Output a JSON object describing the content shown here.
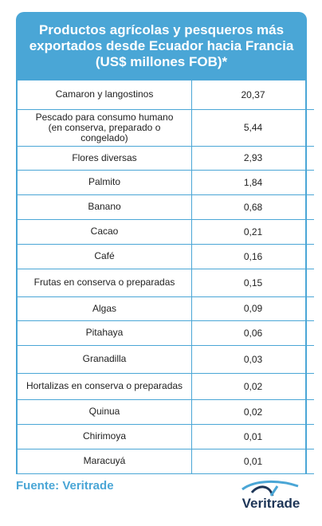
{
  "title": "Productos agrícolas y pesqueros más exportados desde Ecuador hacia Francia (US$ millones FOB)*",
  "rows": [
    {
      "product": "Camaron y langostinos",
      "value": "20,37"
    },
    {
      "product": "Pescado para consumo humano (en conserva, preparado o congelado)",
      "value": "5,44"
    },
    {
      "product": "Flores diversas",
      "value": "2,93"
    },
    {
      "product": "Palmito",
      "value": "1,84"
    },
    {
      "product": "Banano",
      "value": "0,68"
    },
    {
      "product": "Cacao",
      "value": "0,21"
    },
    {
      "product": "Café",
      "value": "0,16"
    },
    {
      "product": "Frutas en conserva o preparadas",
      "value": "0,15"
    },
    {
      "product": "Algas",
      "value": "0,09"
    },
    {
      "product": "Pitahaya",
      "value": "0,06"
    },
    {
      "product": "Granadilla",
      "value": "0,03"
    },
    {
      "product": "Hortalizas en conserva o preparadas",
      "value": "0,02"
    },
    {
      "product": "Quinua",
      "value": "0,02"
    },
    {
      "product": "Chirimoya",
      "value": "0,01"
    },
    {
      "product": "Maracuyá",
      "value": "0,01"
    }
  ],
  "source": "Fuente: Veritrade",
  "logo_text": "Veritrade"
}
